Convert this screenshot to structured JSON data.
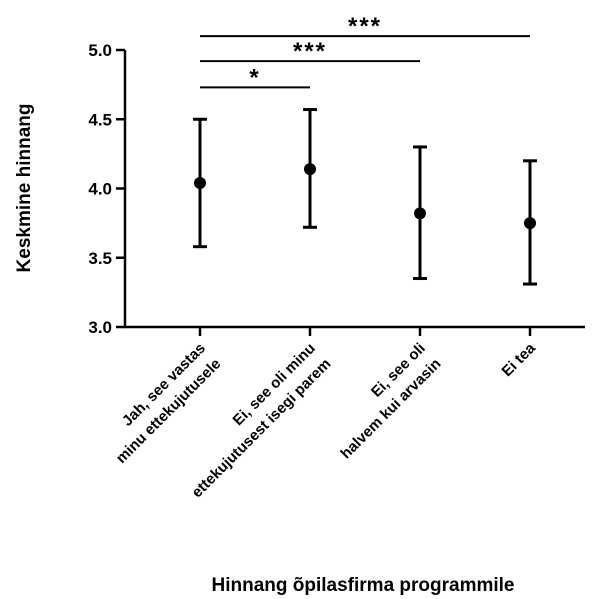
{
  "chart_data": {
    "type": "scatter",
    "title": "",
    "xlabel": "Hinnang õpilasfirma programmile",
    "ylabel": "Keskmine hinnang",
    "ylim": [
      3.0,
      5.0
    ],
    "yticks": [
      "3.0",
      "3.5",
      "4.0",
      "4.5",
      "5.0"
    ],
    "grid": false,
    "legend": "none",
    "categories": [
      [
        "Jah, see vastas",
        "minu ettekujutusele"
      ],
      [
        "Ei, see oli minu",
        "ettekujutusest isegi parem"
      ],
      [
        "Ei, see oli",
        "halvem kui arvasin"
      ],
      [
        "Ei tea"
      ]
    ],
    "series": [
      {
        "mean": [
          4.04,
          4.14,
          3.82,
          3.75
        ],
        "lower": [
          3.58,
          3.72,
          3.35,
          3.31
        ],
        "upper": [
          4.5,
          4.57,
          4.3,
          4.2
        ]
      }
    ],
    "significance": [
      {
        "from": 0,
        "to": 1,
        "label": "*",
        "y": 4.73
      },
      {
        "from": 0,
        "to": 2,
        "label": "***",
        "y": 4.92
      },
      {
        "from": 0,
        "to": 3,
        "label": "***",
        "y": 5.1
      }
    ],
    "colors": {
      "marks": "#000000"
    }
  }
}
